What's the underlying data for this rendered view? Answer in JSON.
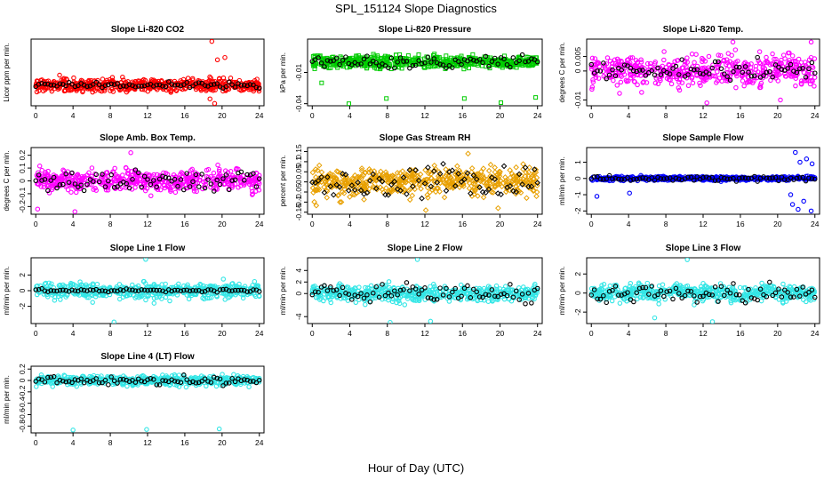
{
  "figure": {
    "title": "SPL_151124  Slope Diagnostics",
    "xlabel": "Hour of Day (UTC)"
  },
  "chart_data": [
    {
      "type": "scatter",
      "title": "Slope Li-820 CO2",
      "ylabel": "Licor ppm per min.",
      "color": "#ff0000",
      "marker": "circle",
      "xlim": [
        -0.5,
        24.5
      ],
      "ylim": [
        -0.45,
        1.0
      ],
      "x_ticks": [
        0,
        4,
        8,
        12,
        16,
        20,
        24
      ],
      "y_ticks": [],
      "spread": 0.12,
      "black_spread": 0.05,
      "outliers": [
        [
          18.9,
          0.95
        ],
        [
          19.5,
          0.55
        ],
        [
          20.3,
          0.6
        ],
        [
          19.2,
          -0.4
        ],
        [
          18.7,
          -0.3
        ]
      ]
    },
    {
      "type": "scatter",
      "title": "Slope Li-820 Pressure",
      "ylabel": "kPa per min.",
      "color": "#00cc00",
      "marker": "square",
      "xlim": [
        -0.5,
        24.5
      ],
      "ylim": [
        -0.042,
        0.022
      ],
      "x_ticks": [
        0,
        4,
        8,
        12,
        16,
        20,
        24
      ],
      "y_ticks": [
        -0.04,
        -0.01
      ],
      "spread": 0.005,
      "black_spread": 0.005,
      "outliers": [
        [
          3.9,
          -0.04
        ],
        [
          7.9,
          -0.035
        ],
        [
          16.2,
          -0.035
        ],
        [
          20.1,
          -0.039
        ],
        [
          23.8,
          -0.034
        ],
        [
          1.0,
          -0.02
        ]
      ]
    },
    {
      "type": "scatter",
      "title": "Slope Li-820 Temp.",
      "ylabel": "degrees C per min.",
      "color": "#ff00ff",
      "marker": "circle",
      "xlim": [
        -0.5,
        24.5
      ],
      "ylim": [
        -0.012,
        0.011
      ],
      "x_ticks": [
        0,
        4,
        8,
        12,
        16,
        20,
        24
      ],
      "y_ticks": [
        -0.01,
        0.0,
        0.005
      ],
      "spread": 0.0045,
      "black_spread": 0.0025,
      "outliers": [
        [
          23.6,
          0.01
        ],
        [
          15.2,
          0.01
        ],
        [
          12.4,
          -0.011
        ],
        [
          20.3,
          -0.01
        ]
      ]
    },
    {
      "type": "scatter",
      "title": "Slope Amb. Box Temp.",
      "ylabel": "degrees C per min.",
      "color": "#ff00ff",
      "marker": "circle",
      "xlim": [
        -0.5,
        24.5
      ],
      "ylim": [
        -0.26,
        0.26
      ],
      "x_ticks": [
        0,
        4,
        8,
        12,
        16,
        20,
        24
      ],
      "y_ticks": [
        -0.2,
        -0.1,
        0.0,
        0.1,
        0.2
      ],
      "spread": 0.07,
      "black_spread": 0.07,
      "outliers": [
        [
          4.2,
          -0.24
        ],
        [
          0.2,
          -0.22
        ],
        [
          10.2,
          0.22
        ]
      ]
    },
    {
      "type": "scatter",
      "title": "Slope Gas Stream RH",
      "ylabel": "percent per min.",
      "color": "#e8a000",
      "marker": "diamond",
      "xlim": [
        -0.5,
        24.5
      ],
      "ylim": [
        -0.16,
        0.17
      ],
      "x_ticks": [
        0,
        4,
        8,
        12,
        16,
        20,
        24
      ],
      "y_ticks": [
        -0.15,
        -0.1,
        -0.05,
        0.0,
        0.05,
        0.1,
        0.15
      ],
      "spread": 0.06,
      "black_spread": 0.07,
      "outliers": [
        [
          16.6,
          0.14
        ],
        [
          12.1,
          -0.14
        ],
        [
          19.8,
          -0.13
        ],
        [
          3.1,
          -0.1
        ]
      ]
    },
    {
      "type": "scatter",
      "title": "Slope Sample Flow",
      "ylabel": "ml/min per min.",
      "color": "#0000ff",
      "marker": "circle",
      "xlim": [
        -0.5,
        24.5
      ],
      "ylim": [
        -2.2,
        1.9
      ],
      "x_ticks": [
        0,
        4,
        8,
        12,
        16,
        20,
        24
      ],
      "y_ticks": [
        -2,
        -1,
        0,
        1
      ],
      "spread": 0.1,
      "black_spread": 0.12,
      "outliers": [
        [
          0.6,
          -1.1
        ],
        [
          4.1,
          -0.9
        ],
        [
          21.4,
          -1.0
        ],
        [
          21.6,
          -1.6
        ],
        [
          22.2,
          -1.9
        ],
        [
          23.6,
          -2.0
        ],
        [
          22.4,
          1.0
        ],
        [
          21.9,
          1.6
        ],
        [
          23.1,
          1.2
        ],
        [
          23.7,
          0.9
        ],
        [
          22.8,
          -1.4
        ]
      ]
    },
    {
      "type": "scatter",
      "title": "Slope Line 1 Flow",
      "ylabel": "ml/min per min.",
      "color": "#33e6e6",
      "marker": "circle",
      "xlim": [
        -0.5,
        24.5
      ],
      "ylim": [
        -4.2,
        4.2
      ],
      "x_ticks": [
        0,
        4,
        8,
        12,
        16,
        20,
        24
      ],
      "y_ticks": [
        -2,
        0,
        2
      ],
      "spread": 0.8,
      "black_spread": 0.15,
      "outliers": [
        [
          8.4,
          -4.0
        ],
        [
          11.8,
          4.0
        ]
      ]
    },
    {
      "type": "scatter",
      "title": "Slope Line 2 Flow",
      "ylabel": "ml/min per min.",
      "color": "#33e6e6",
      "marker": "circle",
      "xlim": [
        -0.5,
        24.5
      ],
      "ylim": [
        -5.2,
        6.2
      ],
      "x_ticks": [
        0,
        4,
        8,
        12,
        16,
        20,
        24
      ],
      "y_ticks": [
        -4,
        0,
        2,
        4
      ],
      "spread": 1.2,
      "black_spread": 1.3,
      "outliers": [
        [
          11.2,
          5.9
        ],
        [
          8.3,
          -5.0
        ],
        [
          12.6,
          -4.8
        ]
      ]
    },
    {
      "type": "scatter",
      "title": "Slope Line 3 Flow",
      "ylabel": "ml/min per min.",
      "color": "#33e6e6",
      "marker": "circle",
      "xlim": [
        -0.5,
        24.5
      ],
      "ylim": [
        -3.2,
        3.7
      ],
      "x_ticks": [
        0,
        4,
        8,
        12,
        16,
        20,
        24
      ],
      "y_ticks": [
        -2,
        0,
        2
      ],
      "spread": 0.7,
      "black_spread": 1.0,
      "outliers": [
        [
          10.3,
          3.5
        ],
        [
          13.0,
          -3.0
        ],
        [
          6.8,
          -2.6
        ]
      ]
    },
    {
      "type": "scatter",
      "title": "Slope Line 4 (LT) Flow",
      "ylabel": "ml/min per min.",
      "color": "#33e6e6",
      "marker": "circle",
      "xlim": [
        -0.5,
        24.5
      ],
      "ylim": [
        -0.92,
        0.25
      ],
      "x_ticks": [
        0,
        4,
        8,
        12,
        16,
        20,
        24
      ],
      "y_ticks": [
        -0.8,
        -0.6,
        -0.4,
        -0.2,
        0.0,
        0.2
      ],
      "spread": 0.07,
      "black_spread": 0.06,
      "outliers": [
        [
          4.0,
          -0.87
        ],
        [
          11.9,
          -0.86
        ],
        [
          19.7,
          -0.85
        ]
      ]
    }
  ]
}
